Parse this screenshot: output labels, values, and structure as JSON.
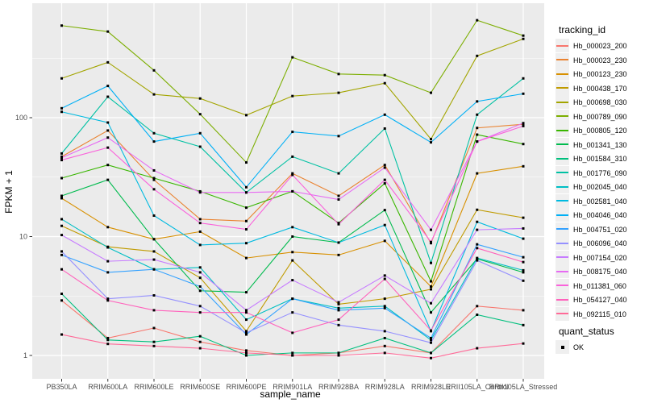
{
  "chart_data": {
    "type": "line",
    "title": "",
    "xlabel": "sample_name",
    "ylabel": "FPKM + 1",
    "y_scale": "log10",
    "y_ticks": [
      1,
      10,
      100
    ],
    "y_minor_ticks": [
      3.162,
      31.62,
      316.2
    ],
    "ylim": [
      0.64,
      920
    ],
    "grid": "on",
    "legend_position": "right",
    "panel_bg": "#EBEBEB",
    "grid_color": "#FFFFFF",
    "point_marker": "square",
    "point_color": "#000000",
    "tick_label_color": "#4D4D4D",
    "categories": [
      "PB350LA",
      "RRIM600LA",
      "RRIM600LE",
      "RRIM600SE",
      "RRIM600PE",
      "RRIM901LA",
      "RRIM928BA",
      "RRIM928LA",
      "RRIM928LE",
      "RRII105LA_Control",
      "RRII105LA_Stressed"
    ],
    "legend_title": "tracking_id",
    "series": [
      {
        "name": "Hb_000023_200",
        "color": "#F8766D",
        "values": [
          2.9,
          1.4,
          1.7,
          1.3,
          1.1,
          1.0,
          1.05,
          1.2,
          1.05,
          2.6,
          2.4
        ]
      },
      {
        "name": "Hb_000023_230",
        "color": "#EA8331",
        "values": [
          47,
          78,
          30,
          14,
          13.5,
          34,
          22,
          40,
          8.8,
          82,
          88
        ]
      },
      {
        "name": "Hb_000123_230",
        "color": "#D89000",
        "values": [
          21,
          12,
          9.5,
          11,
          6.6,
          7.4,
          7.0,
          9.2,
          3.8,
          34,
          39
        ]
      },
      {
        "name": "Hb_000438_170",
        "color": "#C09B00",
        "values": [
          12.3,
          8.2,
          7.5,
          4.5,
          1.6,
          6.3,
          2.7,
          3.0,
          3.6,
          16.8,
          14.4
        ]
      },
      {
        "name": "Hb_000698_030",
        "color": "#A3A500",
        "values": [
          214,
          292,
          157,
          145,
          105,
          152,
          162,
          195,
          66,
          331,
          460
        ]
      },
      {
        "name": "Hb_000789_090",
        "color": "#7CAE00",
        "values": [
          595,
          530,
          250,
          107,
          42,
          322,
          233,
          228,
          162,
          660,
          490
        ]
      },
      {
        "name": "Hb_000805_120",
        "color": "#39B600",
        "values": [
          31,
          40,
          31,
          24,
          17.5,
          24,
          13,
          28,
          4.2,
          72,
          60
        ]
      },
      {
        "name": "Hb_001341_130",
        "color": "#00BB4E",
        "values": [
          22,
          30,
          9.5,
          3.5,
          3.4,
          10,
          8.9,
          16.7,
          2.3,
          6.5,
          5.0
        ]
      },
      {
        "name": "Hb_001584_310",
        "color": "#00BF7D",
        "values": [
          3.3,
          1.35,
          1.3,
          1.45,
          1.0,
          1.05,
          1.05,
          1.4,
          1.05,
          2.2,
          1.8
        ]
      },
      {
        "name": "Hb_001776_090",
        "color": "#00C1A3",
        "values": [
          50,
          150,
          74,
          57,
          23.5,
          47,
          34,
          81,
          6.0,
          106,
          214
        ]
      },
      {
        "name": "Hb_002045_040",
        "color": "#00BFC4",
        "values": [
          14,
          8.1,
          5.3,
          5.5,
          2.0,
          3.0,
          2.5,
          2.6,
          1.35,
          6.6,
          5.2
        ]
      },
      {
        "name": "Hb_002581_040",
        "color": "#00BAE0",
        "values": [
          112,
          91,
          15,
          8.5,
          8.8,
          12,
          8.9,
          12.5,
          1.6,
          13.3,
          9.6
        ]
      },
      {
        "name": "Hb_004046_040",
        "color": "#00B0F6",
        "values": [
          120,
          185,
          63,
          74,
          26,
          76,
          70,
          106,
          62,
          137,
          159
        ]
      },
      {
        "name": "Hb_004751_020",
        "color": "#35A2FF",
        "values": [
          7.0,
          5.0,
          5.3,
          3.8,
          1.5,
          3.0,
          2.4,
          2.5,
          1.4,
          8.6,
          6.7
        ]
      },
      {
        "name": "Hb_006096_040",
        "color": "#9590FF",
        "values": [
          7.5,
          3.0,
          3.2,
          2.6,
          1.55,
          2.3,
          1.8,
          1.6,
          1.28,
          6.3,
          4.25
        ]
      },
      {
        "name": "Hb_007154_020",
        "color": "#C77CFF",
        "values": [
          10.3,
          6.2,
          6.4,
          5.0,
          2.4,
          4.3,
          2.8,
          4.7,
          2.75,
          11.4,
          11.7
        ]
      },
      {
        "name": "Hb_008175_040",
        "color": "#E76BF3",
        "values": [
          46,
          68,
          36,
          23.5,
          23.5,
          24,
          20.5,
          38,
          11.4,
          63,
          90
        ]
      },
      {
        "name": "Hb_011381_060",
        "color": "#FA62DB",
        "values": [
          44,
          56,
          25,
          13,
          11.5,
          33,
          12.7,
          30,
          9.0,
          63,
          85
        ]
      },
      {
        "name": "Hb_054127_040",
        "color": "#FF62BC",
        "values": [
          5.3,
          2.9,
          2.4,
          2.3,
          2.3,
          1.55,
          2.0,
          4.4,
          1.62,
          8.0,
          6.1
        ]
      },
      {
        "name": "Hb_092115_010",
        "color": "#FF6A98",
        "values": [
          1.5,
          1.25,
          1.2,
          1.15,
          1.05,
          1.0,
          1.0,
          1.05,
          0.95,
          1.15,
          1.26
        ]
      }
    ],
    "quant_legend": {
      "title": "quant_status",
      "items": [
        {
          "label": "OK",
          "marker": "black-square"
        }
      ]
    }
  }
}
